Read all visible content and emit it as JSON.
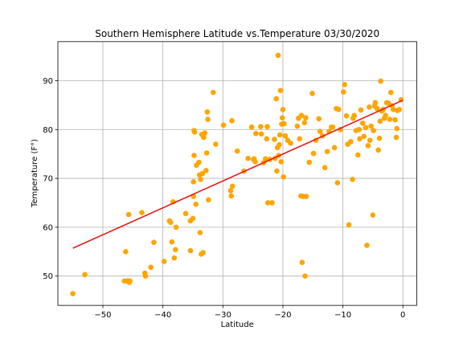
{
  "chart_data": {
    "type": "scatter",
    "title": "Southern Hemisphere Latitude vs.Temperature 03/30/2020",
    "xlabel": "Latitude",
    "ylabel": "Temperature (F°)",
    "xlim": [
      -57.5,
      2.3
    ],
    "ylim": [
      44,
      98
    ],
    "xticks": [
      -50,
      -40,
      -30,
      -20,
      -10,
      0
    ],
    "yticks": [
      50,
      60,
      70,
      80,
      90
    ],
    "grid": true,
    "colors": {
      "points": "#ffa500",
      "regression": "#e41a1c"
    },
    "regression_line": {
      "x": [
        -55,
        0
      ],
      "y": [
        55.7,
        86
      ]
    },
    "series": [
      {
        "points": [
          [
            -55.0,
            46.4
          ],
          [
            -53.0,
            50.3
          ],
          [
            -46.4,
            49.0
          ],
          [
            -46.2,
            55.0
          ],
          [
            -45.9,
            49.0
          ],
          [
            -45.7,
            62.6
          ],
          [
            -45.6,
            48.7
          ],
          [
            -45.5,
            49.0
          ],
          [
            -43.5,
            63.0
          ],
          [
            -43.0,
            50.6
          ],
          [
            -42.9,
            50.0
          ],
          [
            -42.0,
            51.8
          ],
          [
            -41.5,
            56.9
          ],
          [
            -39.8,
            53.0
          ],
          [
            -38.9,
            61.3
          ],
          [
            -38.7,
            61.0
          ],
          [
            -38.5,
            57.0
          ],
          [
            -38.3,
            65.2
          ],
          [
            -38.1,
            53.7
          ],
          [
            -37.9,
            55.4
          ],
          [
            -37.8,
            60.0
          ],
          [
            -36.2,
            62.8
          ],
          [
            -35.4,
            61.3
          ],
          [
            -35.4,
            55.2
          ],
          [
            -35.0,
            61.8
          ],
          [
            -34.9,
            66.3
          ],
          [
            -34.9,
            69.3
          ],
          [
            -34.8,
            74.7
          ],
          [
            -34.8,
            79.8
          ],
          [
            -34.7,
            79.5
          ],
          [
            -34.5,
            64.7
          ],
          [
            -34.4,
            72.7
          ],
          [
            -34.0,
            73.3
          ],
          [
            -33.9,
            70.7
          ],
          [
            -33.8,
            58.9
          ],
          [
            -33.7,
            69.8
          ],
          [
            -33.6,
            54.5
          ],
          [
            -33.5,
            79.0
          ],
          [
            -33.4,
            71.0
          ],
          [
            -33.3,
            54.8
          ],
          [
            -33.2,
            78.4
          ],
          [
            -33.0,
            79.3
          ],
          [
            -32.8,
            71.6
          ],
          [
            -32.7,
            75.2
          ],
          [
            -32.6,
            83.6
          ],
          [
            -32.5,
            82.1
          ],
          [
            -32.4,
            65.6
          ],
          [
            -31.6,
            87.6
          ],
          [
            -31.2,
            77.0
          ],
          [
            -29.9,
            80.9
          ],
          [
            -28.7,
            67.5
          ],
          [
            -28.6,
            66.4
          ],
          [
            -28.5,
            81.8
          ],
          [
            -28.4,
            68.4
          ],
          [
            -27.6,
            75.6
          ],
          [
            -26.5,
            71.5
          ],
          [
            -25.8,
            74.1
          ],
          [
            -25.2,
            80.5
          ],
          [
            -24.9,
            73.9
          ],
          [
            -24.8,
            74.0
          ],
          [
            -24.6,
            73.4
          ],
          [
            -24.5,
            79.2
          ],
          [
            -23.7,
            80.6
          ],
          [
            -23.6,
            79.1
          ],
          [
            -23.2,
            73.2
          ],
          [
            -22.9,
            74.0
          ],
          [
            -22.7,
            78.1
          ],
          [
            -22.6,
            80.6
          ],
          [
            -22.5,
            65.0
          ],
          [
            -22.2,
            73.9
          ],
          [
            -21.8,
            65.0
          ],
          [
            -21.4,
            78.0
          ],
          [
            -21.3,
            74.1
          ],
          [
            -21.1,
            86.3
          ],
          [
            -21.0,
            71.5
          ],
          [
            -20.9,
            76.3
          ],
          [
            -20.8,
            95.2
          ],
          [
            -20.7,
            74.7
          ],
          [
            -20.6,
            76.9
          ],
          [
            -20.5,
            78.9
          ],
          [
            -20.4,
            88.0
          ],
          [
            -20.3,
            73.4
          ],
          [
            -20.2,
            81.1
          ],
          [
            -20.1,
            82.4
          ],
          [
            -20.0,
            84.1
          ],
          [
            -19.9,
            70.3
          ],
          [
            -19.8,
            81.2
          ],
          [
            -19.6,
            78.7
          ],
          [
            -19.2,
            77.8
          ],
          [
            -18.7,
            77.2
          ],
          [
            -17.6,
            80.7
          ],
          [
            -17.4,
            82.3
          ],
          [
            -17.2,
            78.1
          ],
          [
            -17.0,
            66.4
          ],
          [
            -16.9,
            82.9
          ],
          [
            -16.8,
            52.8
          ],
          [
            -16.6,
            66.3
          ],
          [
            -16.4,
            81.4
          ],
          [
            -16.3,
            50.0
          ],
          [
            -16.2,
            82.4
          ],
          [
            -16.1,
            66.3
          ],
          [
            -15.6,
            73.3
          ],
          [
            -15.1,
            87.4
          ],
          [
            -14.9,
            75.1
          ],
          [
            -14.5,
            77.8
          ],
          [
            -14.0,
            82.2
          ],
          [
            -13.8,
            79.6
          ],
          [
            -13.4,
            78.7
          ],
          [
            -13.0,
            72.2
          ],
          [
            -12.6,
            75.5
          ],
          [
            -12.3,
            79.6
          ],
          [
            -11.9,
            80.5
          ],
          [
            -11.7,
            80.5
          ],
          [
            -11.4,
            76.3
          ],
          [
            -11.1,
            84.3
          ],
          [
            -10.9,
            69.1
          ],
          [
            -10.7,
            84.1
          ],
          [
            -10.4,
            80.0
          ],
          [
            -9.9,
            87.7
          ],
          [
            -9.7,
            89.2
          ],
          [
            -9.4,
            82.8
          ],
          [
            -9.2,
            77.0
          ],
          [
            -9.0,
            60.5
          ],
          [
            -8.7,
            77.5
          ],
          [
            -8.4,
            69.8
          ],
          [
            -8.3,
            82.3
          ],
          [
            -8.1,
            82.9
          ],
          [
            -7.8,
            79.8
          ],
          [
            -7.5,
            74.8
          ],
          [
            -7.3,
            80.0
          ],
          [
            -7.2,
            78.1
          ],
          [
            -7.0,
            84.0
          ],
          [
            -6.7,
            81.3
          ],
          [
            -6.5,
            78.6
          ],
          [
            -6.2,
            80.4
          ],
          [
            -6.0,
            56.3
          ],
          [
            -5.8,
            76.7
          ],
          [
            -5.6,
            84.6
          ],
          [
            -5.5,
            77.8
          ],
          [
            -5.3,
            80.7
          ],
          [
            -5.0,
            62.5
          ],
          [
            -4.9,
            79.8
          ],
          [
            -4.7,
            84.8
          ],
          [
            -4.6,
            85.5
          ],
          [
            -4.3,
            84.3
          ],
          [
            -4.1,
            75.8
          ],
          [
            -3.9,
            78.2
          ],
          [
            -3.8,
            81.7
          ],
          [
            -3.7,
            89.9
          ],
          [
            -3.5,
            83.8
          ],
          [
            -3.3,
            84.1
          ],
          [
            -3.1,
            82.3
          ],
          [
            -2.9,
            82.9
          ],
          [
            -2.7,
            85.5
          ],
          [
            -2.4,
            85.4
          ],
          [
            -2.2,
            82.1
          ],
          [
            -2.0,
            87.6
          ],
          [
            -1.8,
            84.9
          ],
          [
            -1.6,
            84.1
          ],
          [
            -1.3,
            82.0
          ],
          [
            -1.1,
            78.4
          ],
          [
            -1.0,
            80.2
          ],
          [
            -0.9,
            83.9
          ],
          [
            -0.6,
            84.1
          ],
          [
            -0.3,
            86.1
          ]
        ]
      }
    ]
  }
}
